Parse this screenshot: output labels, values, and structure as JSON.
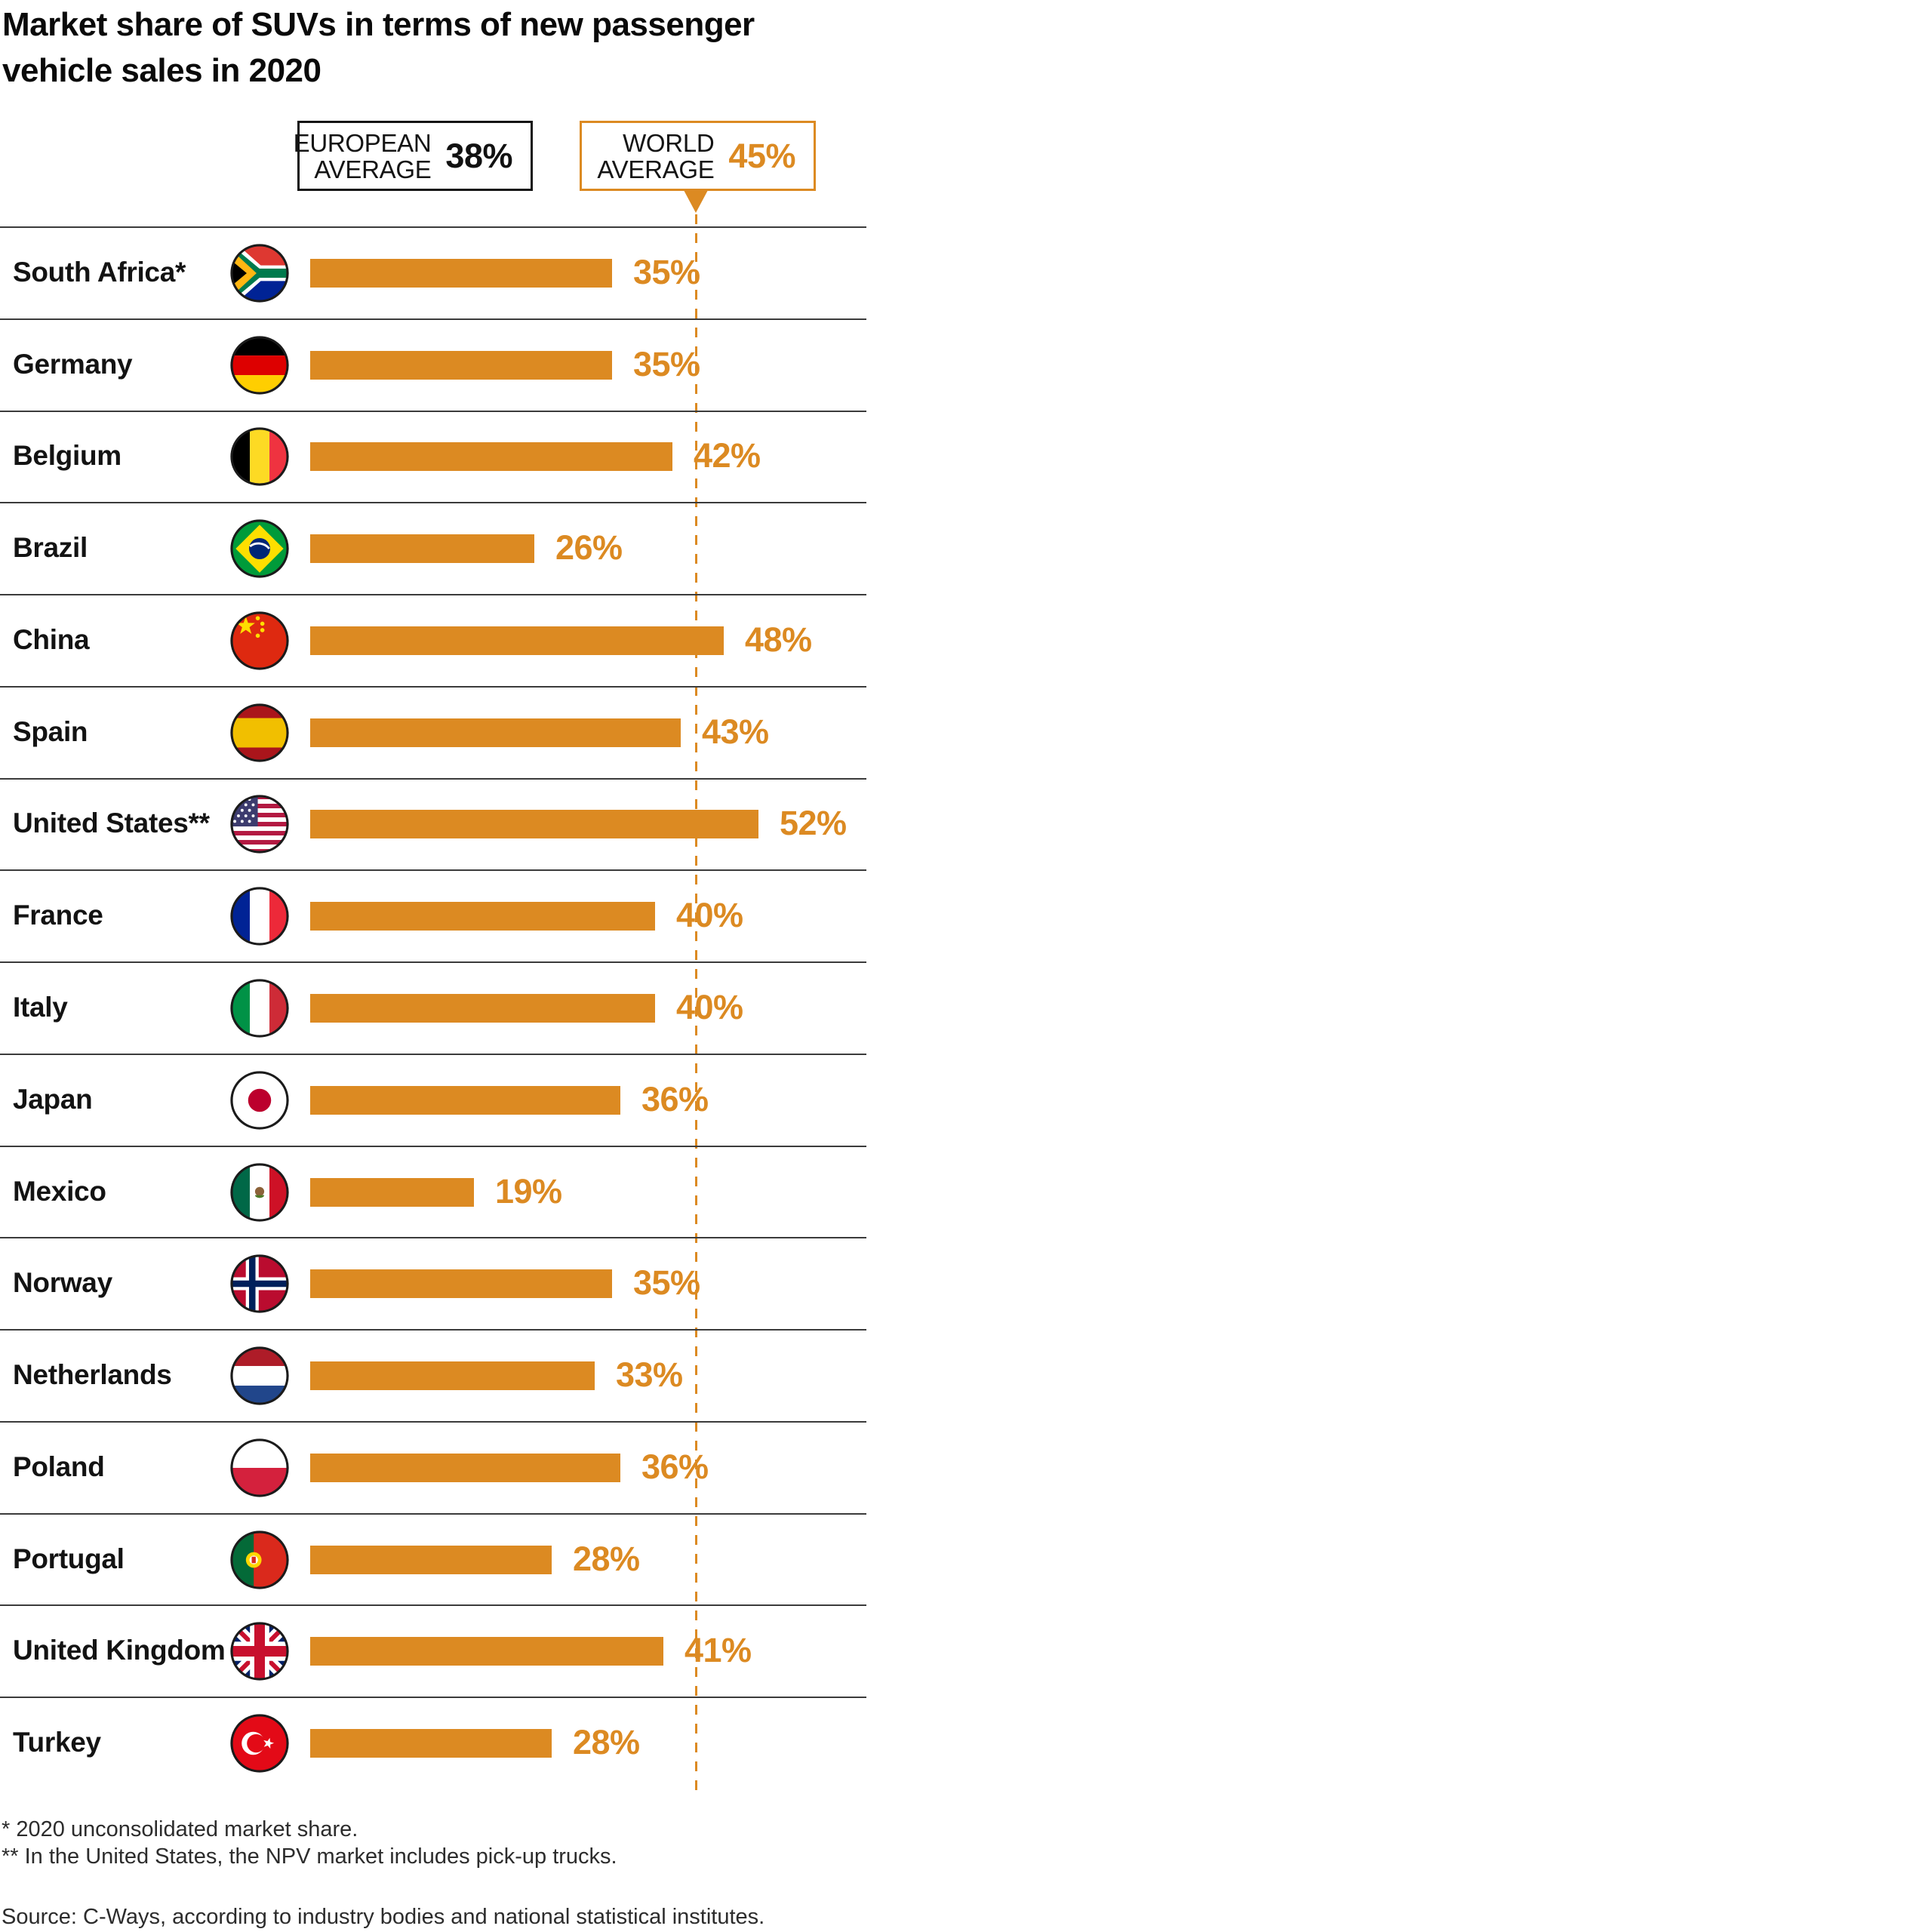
{
  "title": {
    "line1": "Market share of SUVs in terms of new passenger",
    "line2": "vehicle sales in 2020"
  },
  "averages": {
    "european": {
      "label_line1": "EUROPEAN",
      "label_line2": "AVERAGE",
      "value": "38%"
    },
    "world": {
      "label_line1": "WORLD",
      "label_line2": "AVERAGE",
      "value": "45%"
    }
  },
  "chart_data": {
    "type": "bar",
    "orientation": "horizontal",
    "unit": "percent",
    "title": "Market share of SUVs in terms of new passenger vehicle sales in 2020",
    "categories": [
      "South Africa*",
      "Germany",
      "Belgium",
      "Brazil",
      "China",
      "Spain",
      "United States**",
      "France",
      "Italy",
      "Japan",
      "Mexico",
      "Norway",
      "Netherlands",
      "Poland",
      "Portugal",
      "United Kingdom",
      "Turkey"
    ],
    "values": [
      35,
      35,
      42,
      26,
      48,
      43,
      52,
      40,
      40,
      36,
      19,
      35,
      33,
      36,
      28,
      41,
      28
    ],
    "value_labels": [
      "35%",
      "35%",
      "42%",
      "26%",
      "48%",
      "43%",
      "52%",
      "40%",
      "40%",
      "36%",
      "19%",
      "35%",
      "33%",
      "36%",
      "28%",
      "41%",
      "28%"
    ],
    "reference_lines": [
      {
        "label": "EUROPEAN AVERAGE",
        "value": 38
      },
      {
        "label": "WORLD AVERAGE",
        "value": 45,
        "style": "dashed-orange"
      }
    ],
    "xlim": [
      0,
      64
    ],
    "grid": false,
    "legend": false,
    "bar_color": "#DC8A22"
  },
  "rows": [
    {
      "country": "South Africa*",
      "flag": "south-africa",
      "value": 35,
      "display": "35%"
    },
    {
      "country": "Germany",
      "flag": "germany",
      "value": 35,
      "display": "35%"
    },
    {
      "country": "Belgium",
      "flag": "belgium",
      "value": 42,
      "display": "42%"
    },
    {
      "country": "Brazil",
      "flag": "brazil",
      "value": 26,
      "display": "26%"
    },
    {
      "country": "China",
      "flag": "china",
      "value": 48,
      "display": "48%"
    },
    {
      "country": "Spain",
      "flag": "spain",
      "value": 43,
      "display": "43%"
    },
    {
      "country": "United States**",
      "flag": "united-states",
      "value": 52,
      "display": "52%"
    },
    {
      "country": "France",
      "flag": "france",
      "value": 40,
      "display": "40%"
    },
    {
      "country": "Italy",
      "flag": "italy",
      "value": 40,
      "display": "40%"
    },
    {
      "country": "Japan",
      "flag": "japan",
      "value": 36,
      "display": "36%"
    },
    {
      "country": "Mexico",
      "flag": "mexico",
      "value": 19,
      "display": "19%"
    },
    {
      "country": "Norway",
      "flag": "norway",
      "value": 35,
      "display": "35%"
    },
    {
      "country": "Netherlands",
      "flag": "netherlands",
      "value": 33,
      "display": "33%"
    },
    {
      "country": "Poland",
      "flag": "poland",
      "value": 36,
      "display": "36%"
    },
    {
      "country": "Portugal",
      "flag": "portugal",
      "value": 28,
      "display": "28%"
    },
    {
      "country": "United Kingdom",
      "flag": "united-kingdom",
      "value": 41,
      "display": "41%"
    },
    {
      "country": "Turkey",
      "flag": "turkey",
      "value": 28,
      "display": "28%"
    }
  ],
  "footnotes": [
    "* 2020 unconsolidated market share.",
    "** In the United States, the NPV market includes pick-up trucks."
  ],
  "source": "Source: C-Ways, according to industry bodies and national statistical institutes.",
  "colors": {
    "accent_orange": "#DC8A22",
    "separator": "#3B3B3B",
    "text_black": "#111111"
  }
}
